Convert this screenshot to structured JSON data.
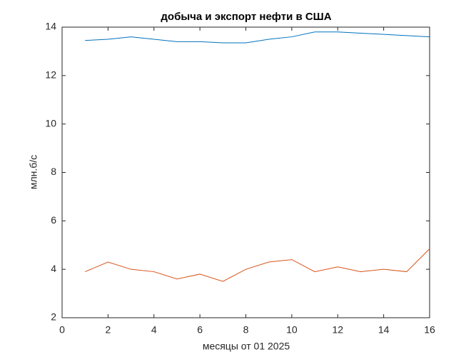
{
  "chart_data": {
    "type": "line",
    "title": "добыча и экспорт нефти в США",
    "x_label": "месяцы от 01 2025",
    "y_label": "млн.б/с",
    "x": [
      1,
      2,
      3,
      4,
      5,
      6,
      7,
      8,
      9,
      10,
      11,
      12,
      13,
      14,
      15,
      16
    ],
    "series": [
      {
        "color": "#0072bd",
        "values": [
          13.45,
          13.5,
          13.6,
          13.5,
          13.4,
          13.4,
          13.35,
          13.35,
          13.5,
          13.6,
          13.8,
          13.8,
          13.75,
          13.7,
          13.65,
          13.6
        ]
      },
      {
        "color": "#d95319",
        "values": [
          3.9,
          4.3,
          4.0,
          3.9,
          3.6,
          3.8,
          3.5,
          4.0,
          4.3,
          4.4,
          3.9,
          4.1,
          3.9,
          4.0,
          3.9,
          4.85
        ]
      }
    ],
    "xlim": [
      0,
      16
    ],
    "xticks": [
      0,
      2,
      4,
      6,
      8,
      10,
      12,
      14,
      16
    ],
    "ylim": [
      2,
      14
    ],
    "yticks": [
      2,
      4,
      6,
      8,
      10,
      12,
      14
    ]
  }
}
